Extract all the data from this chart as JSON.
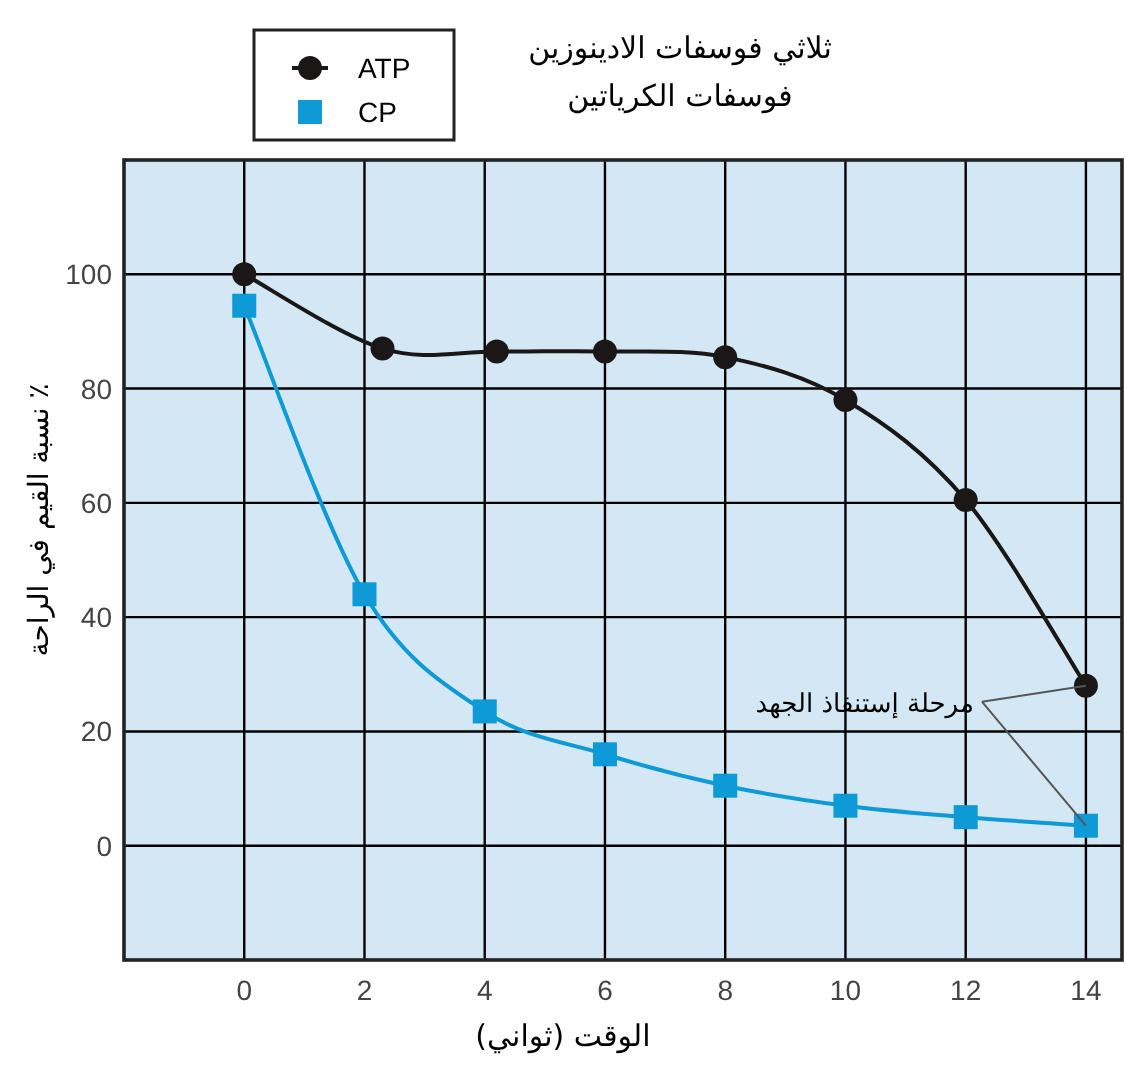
{
  "chart_data": {
    "type": "line",
    "xlabel": "الوقت (ثواني)",
    "ylabel": "٪ نسبة القيم في الراحة",
    "xlim": [
      -2,
      14.6
    ],
    "ylim": [
      -20,
      120
    ],
    "xticks": [
      0,
      2,
      4,
      6,
      8,
      10,
      12,
      14
    ],
    "yticks": [
      0,
      20,
      40,
      60,
      80,
      100
    ],
    "grid": true,
    "legend": "top",
    "line_style": "solid",
    "series": [
      {
        "name": "ATP",
        "color": "#1a1716",
        "marker": "circle",
        "x": [
          0,
          2.3,
          4.2,
          6,
          8,
          10,
          12,
          14
        ],
        "values": [
          100,
          87,
          86.5,
          86.5,
          85.5,
          78,
          60.5,
          28
        ]
      },
      {
        "name": "CP",
        "color": "#0e9ad6",
        "marker": "square",
        "x": [
          0,
          2,
          4,
          6,
          8,
          10,
          12,
          14
        ],
        "values": [
          94.5,
          44,
          23.5,
          16,
          10.5,
          7,
          5,
          3.5
        ]
      }
    ],
    "annotations": [
      "ثلاثي فوسفات الادينوزين",
      "فوسفات الكرياتين",
      {
        "text": "مرحلة إستنفاذ الجهد",
        "x": 14,
        "y": 28
      }
    ]
  }
}
